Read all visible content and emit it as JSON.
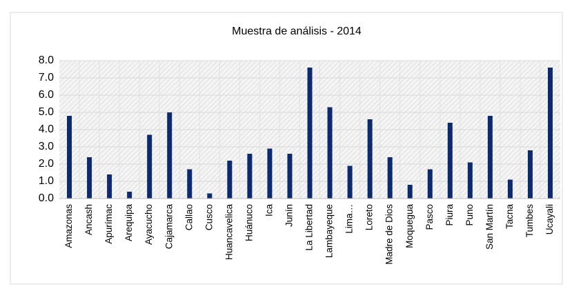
{
  "chart_data": {
    "type": "bar",
    "title": "Muestra de análisis - 2014",
    "categories": [
      "Amazonas",
      "Ancash",
      "Apurímac",
      "Arequipa",
      "Ayacucho",
      "Cajamarca",
      "Callao",
      "Cusco",
      "Huancavelica",
      "Huánuco",
      "Ica",
      "Junín",
      "La Libertad",
      "Lambayeque",
      "Lima…",
      "Loreto",
      "Madre de Dios",
      "Moquegua",
      "Pasco",
      "Piura",
      "Puno",
      "San Martín",
      "Tacna",
      "Tumbes",
      "Ucayali"
    ],
    "values": [
      4.8,
      2.4,
      1.4,
      0.4,
      3.7,
      5.0,
      1.7,
      0.3,
      2.2,
      2.6,
      2.9,
      2.6,
      7.6,
      5.3,
      1.9,
      4.6,
      2.4,
      0.8,
      1.7,
      4.4,
      2.1,
      4.8,
      1.1,
      2.8,
      7.6
    ],
    "color": "#0e2a6e",
    "ylim": [
      0,
      8
    ],
    "yticks": [
      {
        "value": 0,
        "label": "0.0"
      },
      {
        "value": 1,
        "label": "1.0"
      },
      {
        "value": 2,
        "label": "2.0"
      },
      {
        "value": 3,
        "label": "3.0"
      },
      {
        "value": 4,
        "label": "4.0"
      },
      {
        "value": 5,
        "label": "5.0"
      },
      {
        "value": 6,
        "label": "6.0"
      },
      {
        "value": 7,
        "label": "7.0"
      },
      {
        "value": 8,
        "label": "8.0"
      }
    ],
    "grid": true
  }
}
